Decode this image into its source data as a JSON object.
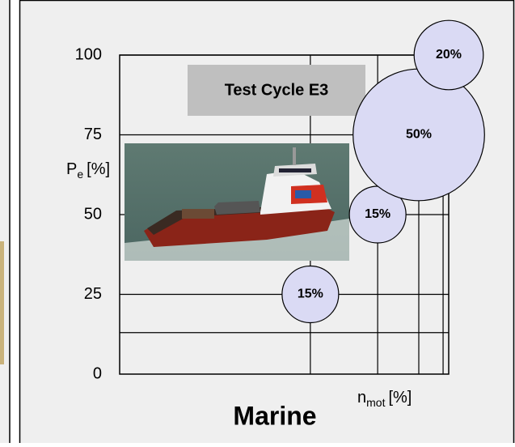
{
  "chart_data": {
    "type": "bubble",
    "title": "Test Cycle E3",
    "caption": "Marine",
    "y_label": {
      "main": "P",
      "sub": "e",
      "unit": "[%]"
    },
    "x_label": {
      "main": "n",
      "sub": "mot",
      "unit": "[%]"
    },
    "xlim": [
      12,
      100
    ],
    "ylim": [
      0,
      100
    ],
    "yticks": [
      0,
      25,
      50,
      75,
      100
    ],
    "xgrid": [
      63,
      81,
      92,
      98.5
    ],
    "ygrid": [
      13,
      25,
      50,
      75,
      100
    ],
    "color": "#dadaf4",
    "x": [
      63,
      81,
      92,
      100
    ],
    "y": [
      25,
      50,
      75,
      100
    ],
    "size": [
      15,
      15,
      50,
      20
    ],
    "value_labels": [
      "15%",
      "15%",
      "50%",
      "20%"
    ]
  }
}
